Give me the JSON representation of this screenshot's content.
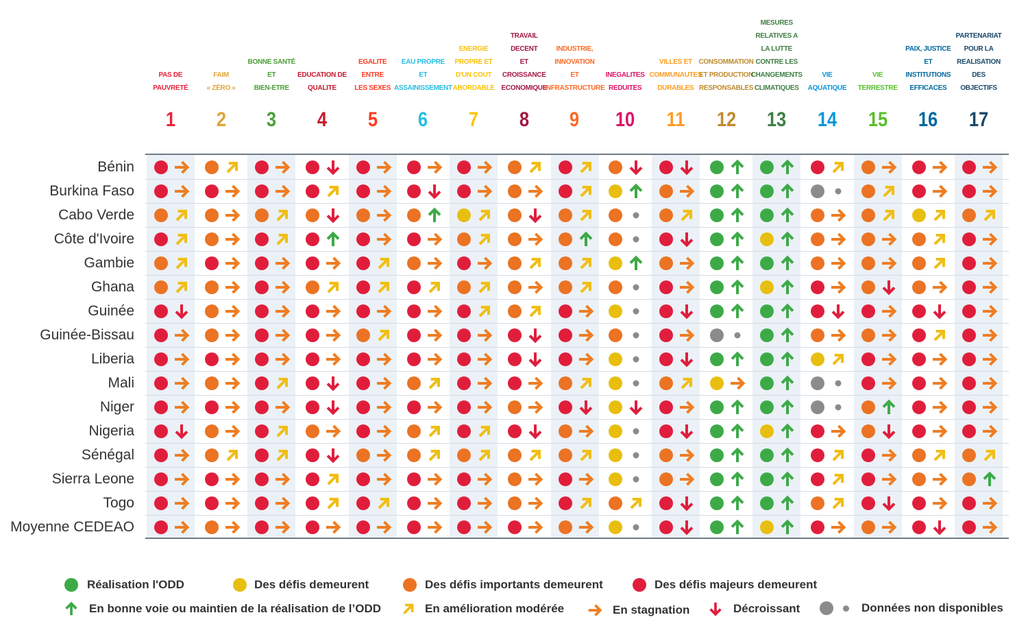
{
  "chart_data": {
    "type": "table",
    "title": "",
    "goals": [
      {
        "number": "1",
        "lines": [
          "PAS DE",
          "PAUVRETÉ"
        ],
        "color": "#e5243b"
      },
      {
        "number": "2",
        "lines": [
          "FAIM",
          "« ZÉRO »"
        ],
        "color": "#dda63a"
      },
      {
        "number": "3",
        "lines": [
          "BONNE SANTÉ",
          "ET",
          "BIEN-ETRE"
        ],
        "color": "#4c9f38"
      },
      {
        "number": "4",
        "lines": [
          "EDUCATION DE",
          "QUALITE"
        ],
        "color": "#c5192d"
      },
      {
        "number": "5",
        "lines": [
          "EGALITE ENTRE",
          "LES SEXES"
        ],
        "color": "#ff3a21"
      },
      {
        "number": "6",
        "lines": [
          "EAU PROPRE",
          "ET",
          "ASSAINISSEMENT"
        ],
        "color": "#26bde2"
      },
      {
        "number": "7",
        "lines": [
          "ENERGIE",
          "PROPRE ET",
          "D'UN COUT",
          "ABORDABLE"
        ],
        "color": "#fcc30b"
      },
      {
        "number": "8",
        "lines": [
          "TRAVAIL DECENT",
          "ET CROISSANCE",
          "ECONOMIQUE"
        ],
        "color": "#a21942"
      },
      {
        "number": "9",
        "lines": [
          "INDUSTRIE,",
          "INNOVATION",
          "ET",
          "INFRASTRUCTURE"
        ],
        "color": "#fd6925"
      },
      {
        "number": "10",
        "lines": [
          "INEGALITES",
          "REDUITES"
        ],
        "color": "#dd1367"
      },
      {
        "number": "11",
        "lines": [
          "VILLES ET",
          "COMMUNAUTES",
          "DURABLES"
        ],
        "color": "#fd9d24"
      },
      {
        "number": "12",
        "lines": [
          "CONSOMMATION",
          "ET PRODUCTION",
          "RESPONSABLES"
        ],
        "color": "#bf8b2e"
      },
      {
        "number": "13",
        "lines": [
          "MESURES",
          "RELATIVES A",
          "LA LUTTE",
          "CONTRE LES",
          "CHANGEMENTS",
          "CLIMATIQUES"
        ],
        "color": "#3f7e44"
      },
      {
        "number": "14",
        "lines": [
          "VIE",
          "AQUATIQUE"
        ],
        "color": "#0a97d9"
      },
      {
        "number": "15",
        "lines": [
          "VIE",
          "TERRESTRE"
        ],
        "color": "#56c02b"
      },
      {
        "number": "16",
        "lines": [
          "PAIX, JUSTICE",
          "ET",
          "INSTITUTIONS",
          "EFFICACES"
        ],
        "color": "#00689d"
      },
      {
        "number": "17",
        "lines": [
          "PARTENARIAT",
          "POUR LA",
          "REALISATION DES",
          "OBJECTIFS"
        ],
        "color": "#19486a"
      }
    ],
    "status_colors": {
      "G": "#3daa47",
      "Y": "#e8bf10",
      "O": "#eb7323",
      "R": "#e01e3c",
      "N": "#8b8b8b"
    },
    "trend_colors": {
      "up": "#3daa47",
      "mod": "#f0be15",
      "stag": "#ef7d22",
      "down": "#e01e3c",
      "na": "#8b8b8b"
    },
    "rows": [
      {
        "country": "Bénin",
        "cells": [
          "R>",
          "O/",
          "R>",
          "Rv",
          "R>",
          "R>",
          "R>",
          "O/",
          "R/",
          "Ov",
          "Rv",
          "G^",
          "G^",
          "R/",
          "O>",
          "R>",
          "R>"
        ]
      },
      {
        "country": "Burkina Faso",
        "cells": [
          "R>",
          "R>",
          "R>",
          "R/",
          "R>",
          "Rv",
          "R>",
          "O>",
          "R/",
          "Y^",
          "O>",
          "G^",
          "G^",
          "N.",
          "O/",
          "R>",
          "R>"
        ]
      },
      {
        "country": "Cabo Verde",
        "cells": [
          "O/",
          "O>",
          "O/",
          "Ov",
          "O>",
          "O^",
          "Y/",
          "Ov",
          "O/",
          "O.",
          "O/",
          "G^",
          "G^",
          "O>",
          "O/",
          "Y/",
          "O/"
        ]
      },
      {
        "country": "Côte d'Ivoire",
        "cells": [
          "R/",
          "O>",
          "R/",
          "R^",
          "R>",
          "R>",
          "O/",
          "O>",
          "O^",
          "O.",
          "Rv",
          "G^",
          "Y^",
          "O>",
          "O>",
          "O/",
          "R>"
        ]
      },
      {
        "country": "Gambie",
        "cells": [
          "O/",
          "R>",
          "R>",
          "R>",
          "R/",
          "O>",
          "R>",
          "O/",
          "O/",
          "Y^",
          "O>",
          "G^",
          "G^",
          "O>",
          "O>",
          "O/",
          "R>"
        ]
      },
      {
        "country": "Ghana",
        "cells": [
          "O/",
          "O>",
          "R>",
          "O/",
          "R/",
          "R/",
          "O/",
          "O>",
          "O/",
          "O.",
          "R>",
          "G^",
          "Y^",
          "R>",
          "Ov",
          "O>",
          "R>"
        ]
      },
      {
        "country": "Guinée",
        "cells": [
          "Rv",
          "O>",
          "R>",
          "R>",
          "R>",
          "R>",
          "R/",
          "O/",
          "R>",
          "Y.",
          "Rv",
          "G^",
          "G^",
          "Rv",
          "R>",
          "Rv",
          "R>"
        ]
      },
      {
        "country": "Guinée-Bissau",
        "cells": [
          "R>",
          "O>",
          "R>",
          "R>",
          "O/",
          "R>",
          "R>",
          "Rv",
          "R>",
          "O.",
          "R>",
          "N.",
          "G^",
          "O>",
          "O>",
          "R/",
          "R>"
        ]
      },
      {
        "country": "Liberia",
        "cells": [
          "R>",
          "R>",
          "R>",
          "R>",
          "R>",
          "R>",
          "R>",
          "Rv",
          "R>",
          "Y.",
          "Rv",
          "G^",
          "G^",
          "Y/",
          "R>",
          "R>",
          "R>"
        ]
      },
      {
        "country": "Mali",
        "cells": [
          "R>",
          "O>",
          "R/",
          "Rv",
          "R>",
          "O/",
          "R>",
          "R>",
          "O/",
          "Y.",
          "O/",
          "Y>",
          "G^",
          "N.",
          "R>",
          "R>",
          "R>"
        ]
      },
      {
        "country": "Niger",
        "cells": [
          "R>",
          "R>",
          "R>",
          "Rv",
          "R>",
          "R>",
          "R>",
          "O>",
          "Rv",
          "Yv",
          "R>",
          "G^",
          "G^",
          "N.",
          "O^",
          "R>",
          "R>"
        ]
      },
      {
        "country": "Nigeria",
        "cells": [
          "Rv",
          "O>",
          "R/",
          "O>",
          "R>",
          "O/",
          "R/",
          "Rv",
          "O>",
          "Y.",
          "Rv",
          "G^",
          "Y^",
          "R>",
          "Ov",
          "R>",
          "R>"
        ]
      },
      {
        "country": "Sénégal",
        "cells": [
          "R>",
          "O/",
          "R/",
          "Rv",
          "O>",
          "O/",
          "O/",
          "O/",
          "O/",
          "Y.",
          "O>",
          "G^",
          "G^",
          "R/",
          "R>",
          "O/",
          "O/"
        ]
      },
      {
        "country": "Sierra Leone",
        "cells": [
          "R>",
          "R>",
          "R>",
          "R/",
          "R>",
          "R>",
          "R>",
          "O>",
          "R>",
          "Y.",
          "O>",
          "G^",
          "G^",
          "R/",
          "R>",
          "O>",
          "O^"
        ]
      },
      {
        "country": "Togo",
        "cells": [
          "R>",
          "R>",
          "R>",
          "R/",
          "R/",
          "R>",
          "R>",
          "O>",
          "R/",
          "O/",
          "Rv",
          "G^",
          "G^",
          "O/",
          "Rv",
          "R>",
          "R>"
        ]
      },
      {
        "country": "Moyenne CEDEAO",
        "cells": [
          "R>",
          "O>",
          "R>",
          "R>",
          "R>",
          "R>",
          "R>",
          "R>",
          "O>",
          "Y.",
          "Rv",
          "G^",
          "Y^",
          "R>",
          "O>",
          "Rv",
          "R>"
        ]
      }
    ]
  },
  "legend": {
    "status": [
      {
        "key": "G",
        "label": "Réalisation l'ODD"
      },
      {
        "key": "Y",
        "label": "Des défis demeurent"
      },
      {
        "key": "O",
        "label": "Des défis importants demeurent"
      },
      {
        "key": "R",
        "label": "Des défis majeurs demeurent"
      }
    ],
    "trend": [
      {
        "key": "up",
        "label": "En bonne voie ou maintien de la réalisation de l’ODD"
      },
      {
        "key": "mod",
        "label": "En amélioration modérée"
      },
      {
        "key": "stag",
        "label": "En stagnation"
      },
      {
        "key": "down",
        "label": "Décroissant"
      },
      {
        "key": "na",
        "label": "Données non disponibles"
      }
    ]
  }
}
